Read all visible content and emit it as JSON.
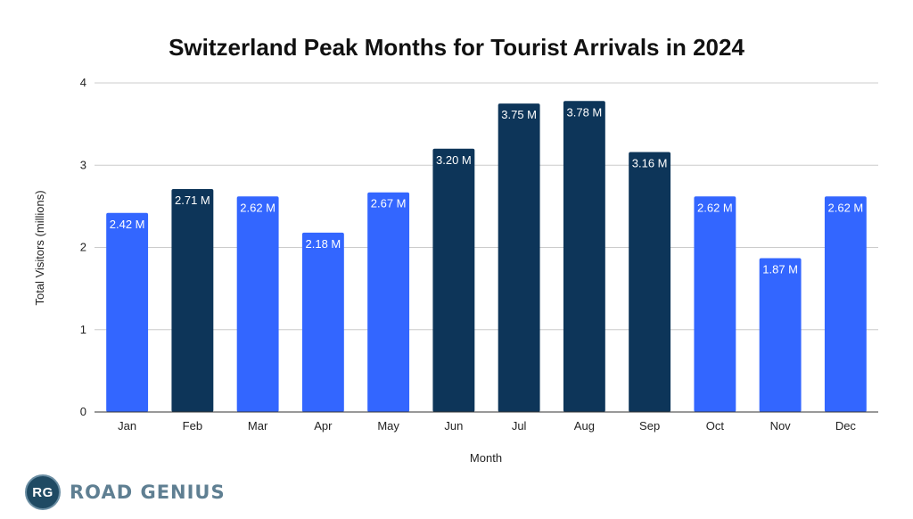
{
  "chart_data": {
    "type": "bar",
    "title": "Switzerland Peak Months for Tourist Arrivals in 2024",
    "xlabel": "Month",
    "ylabel": "Total Visitors (millions)",
    "ylim": [
      0,
      4
    ],
    "yticks": [
      0,
      1,
      2,
      3,
      4
    ],
    "categories": [
      "Jan",
      "Feb",
      "Mar",
      "Apr",
      "May",
      "Jun",
      "Jul",
      "Aug",
      "Sep",
      "Oct",
      "Nov",
      "Dec"
    ],
    "values": [
      2.42,
      2.71,
      2.62,
      2.18,
      2.67,
      3.2,
      3.75,
      3.78,
      3.16,
      2.62,
      1.87,
      2.62
    ],
    "value_labels": [
      "2.42 M",
      "2.71 M",
      "2.62 M",
      "2.18 M",
      "2.67 M",
      "3.20 M",
      "3.75 M",
      "3.78 M",
      "3.16 M",
      "2.62 M",
      "1.87 M",
      "2.62 M"
    ],
    "peak": [
      false,
      true,
      false,
      false,
      false,
      true,
      true,
      true,
      true,
      false,
      false,
      false
    ],
    "grid": true,
    "colors": {
      "regular": "#3366ff",
      "peak": "#0d3559",
      "grid": "#cccccc",
      "axis": "#333333"
    }
  },
  "branding": {
    "badge": "RG",
    "name": "ROAD GENIUS"
  }
}
